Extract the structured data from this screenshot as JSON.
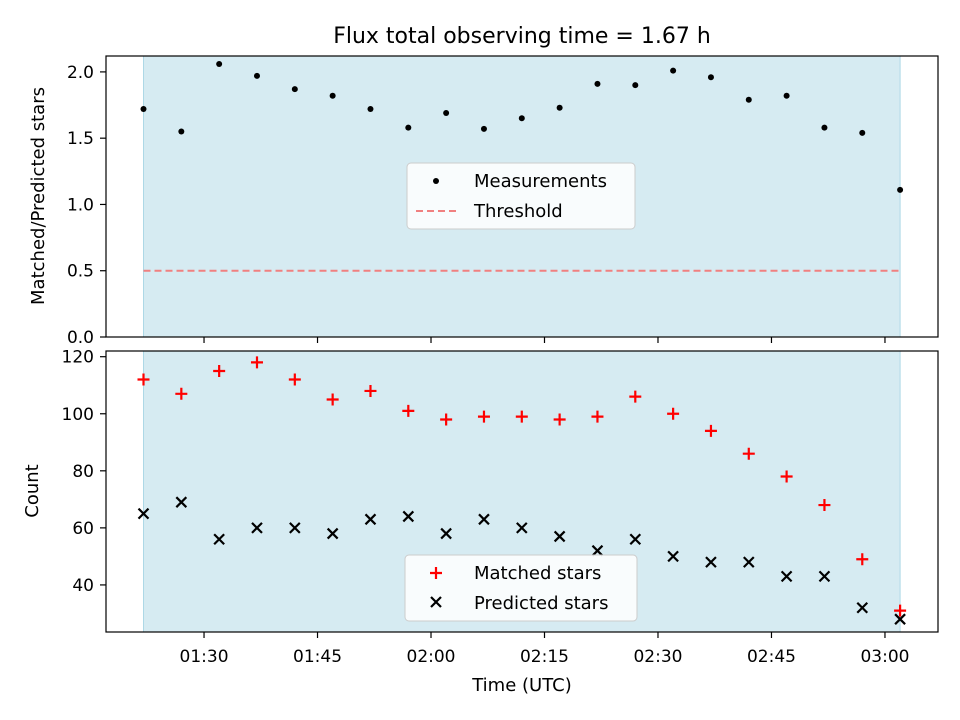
{
  "title": "Flux total observing time = 1.67 h",
  "colors": {
    "shade": "#add8e6",
    "measurement": "#000000",
    "threshold": "#f08080",
    "matched": "#ff0000",
    "predicted": "#000000"
  },
  "chart_data": [
    {
      "type": "scatter",
      "ylabel": "Matched/Predicted stars",
      "ylim": [
        0,
        2.12
      ],
      "yticks": [
        0.0,
        0.5,
        1.0,
        1.5,
        2.0
      ],
      "ytick_labels": [
        "0.0",
        "0.5",
        "1.0",
        "1.5",
        "2.0"
      ],
      "x": [
        "01:22",
        "01:27",
        "01:32",
        "01:37",
        "01:42",
        "01:47",
        "01:52",
        "01:57",
        "02:02",
        "02:07",
        "02:12",
        "02:17",
        "02:22",
        "02:27",
        "02:32",
        "02:37",
        "02:42",
        "02:47",
        "02:52",
        "02:57",
        "03:02"
      ],
      "shaded_x_range": [
        "01:22",
        "03:02"
      ],
      "series": [
        {
          "name": "Measurements",
          "marker": "dot",
          "values": [
            1.72,
            1.55,
            2.06,
            1.97,
            1.87,
            1.82,
            1.72,
            1.58,
            1.69,
            1.57,
            1.65,
            1.73,
            1.91,
            1.9,
            2.01,
            1.96,
            1.79,
            1.82,
            1.58,
            1.54,
            1.11
          ]
        },
        {
          "name": "Threshold",
          "style": "dashed",
          "values": [
            0.5,
            0.5
          ]
        }
      ],
      "legend_position": "center"
    },
    {
      "type": "scatter",
      "xlabel": "Time (UTC)",
      "ylabel": "Count",
      "ylim": [
        23.5,
        122
      ],
      "yticks": [
        40,
        60,
        80,
        100,
        120
      ],
      "ytick_labels": [
        "40",
        "60",
        "80",
        "100",
        "120"
      ],
      "xticks": [
        "01:30",
        "01:45",
        "02:00",
        "02:15",
        "02:30",
        "02:45",
        "03:00"
      ],
      "x": [
        "01:22",
        "01:27",
        "01:32",
        "01:37",
        "01:42",
        "01:47",
        "01:52",
        "01:57",
        "02:02",
        "02:07",
        "02:12",
        "02:17",
        "02:22",
        "02:27",
        "02:32",
        "02:37",
        "02:42",
        "02:47",
        "02:52",
        "02:57",
        "03:02"
      ],
      "shaded_x_range": [
        "01:22",
        "03:02"
      ],
      "series": [
        {
          "name": "Matched stars",
          "marker": "+",
          "values": [
            112,
            107,
            115,
            118,
            112,
            105,
            108,
            101,
            98,
            99,
            99,
            98,
            99,
            106,
            100,
            94,
            86,
            78,
            68,
            49,
            31
          ]
        },
        {
          "name": "Predicted stars",
          "marker": "x",
          "values": [
            65,
            69,
            56,
            60,
            60,
            58,
            63,
            64,
            58,
            63,
            60,
            57,
            52,
            56,
            50,
            48,
            48,
            43,
            43,
            32,
            28
          ]
        }
      ],
      "legend_position": "lower center"
    }
  ]
}
